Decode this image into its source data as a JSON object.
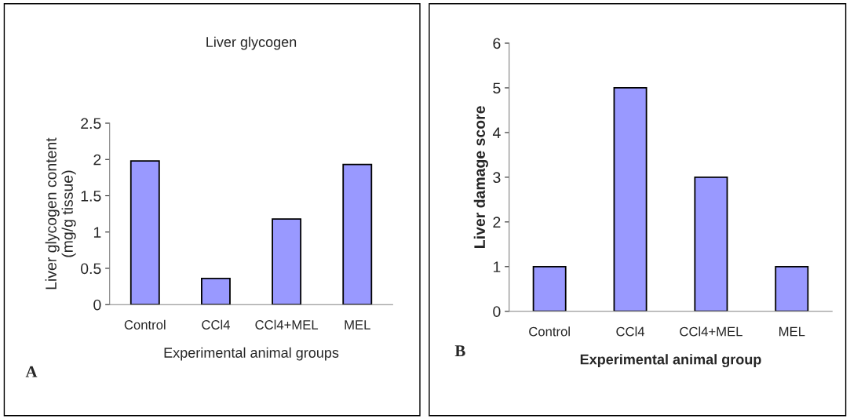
{
  "chart_data": [
    {
      "type": "bar",
      "title": "Liver glycogen",
      "xlabel": "Experimental animal groups",
      "ylabel": "Liver glycogen content\n(mg/g tissue)",
      "categories": [
        "Control",
        "CCl4",
        "CCl4+MEL",
        "MEL"
      ],
      "values": [
        1.98,
        0.36,
        1.18,
        1.93
      ],
      "color": "#9999ff",
      "ylim": [
        0,
        2.5
      ],
      "yticks": [
        0,
        0.5,
        1,
        1.5,
        2,
        2.5
      ],
      "grid": false,
      "annotations": [
        "A"
      ]
    },
    {
      "type": "bar",
      "xlabel": "Experimental animal group",
      "ylabel": "Liver damage score",
      "categories": [
        "Control",
        "CCl4",
        "CCl4+MEL",
        "MEL"
      ],
      "values": [
        1,
        5,
        3,
        1
      ],
      "color": "#9999ff",
      "ylim": [
        0,
        6
      ],
      "yticks": [
        0,
        1,
        2,
        3,
        4,
        5,
        6
      ],
      "grid": false,
      "annotations": [
        "B"
      ]
    }
  ]
}
